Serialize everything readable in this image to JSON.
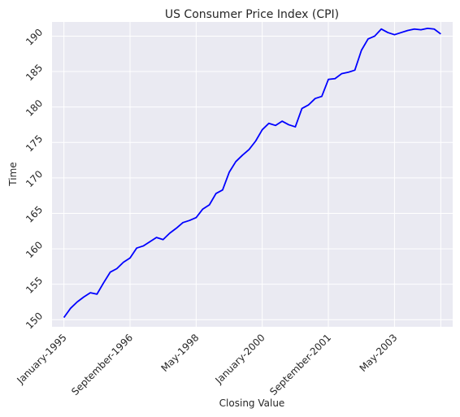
{
  "chart_data": {
    "type": "line",
    "title": "US Consumer Price Index (CPI)",
    "xlabel": "Closing Value",
    "ylabel": "Time",
    "x_tick_labels": [
      "January-1995",
      "September-1996",
      "May-1998",
      "January-2000",
      "September-2001",
      "May-2003"
    ],
    "y_ticks": [
      150,
      155,
      160,
      165,
      170,
      175,
      180,
      185,
      190
    ],
    "ylim": [
      149,
      192
    ],
    "xlim": [
      -3.6,
      117.6
    ],
    "grid": true,
    "line_color": "#0000ff",
    "background_color": "#eaeaf2",
    "series": [
      {
        "x": [
          0,
          2,
          4,
          6,
          8,
          10,
          12,
          14,
          16,
          18,
          20,
          22,
          24,
          26,
          28,
          30,
          32,
          34,
          36,
          38,
          40,
          42,
          44,
          46,
          48,
          50,
          52,
          54,
          56,
          58,
          60,
          62,
          64,
          66,
          68,
          70,
          72,
          74,
          76,
          78,
          80,
          82,
          84,
          86,
          88,
          90,
          92,
          94,
          96,
          98,
          100,
          102,
          104,
          106,
          108,
          110,
          112,
          114
        ],
        "values": [
          150.3,
          151.6,
          152.5,
          153.2,
          153.8,
          153.6,
          155.2,
          156.7,
          157.2,
          158.1,
          158.7,
          160.1,
          160.4,
          161.0,
          161.6,
          161.3,
          162.2,
          162.9,
          163.7,
          164.0,
          164.4,
          165.6,
          166.2,
          167.8,
          168.3,
          170.8,
          172.3,
          173.2,
          174.0,
          175.2,
          176.8,
          177.7,
          177.4,
          178.0,
          177.5,
          177.2,
          179.8,
          180.3,
          181.2,
          181.5,
          183.9,
          184.0,
          184.7,
          184.9,
          185.2,
          188.0,
          189.6,
          190.0,
          191.0,
          190.5,
          190.2,
          190.5,
          190.8,
          191.0,
          190.9,
          191.1,
          191.0,
          190.3
        ]
      }
    ]
  }
}
